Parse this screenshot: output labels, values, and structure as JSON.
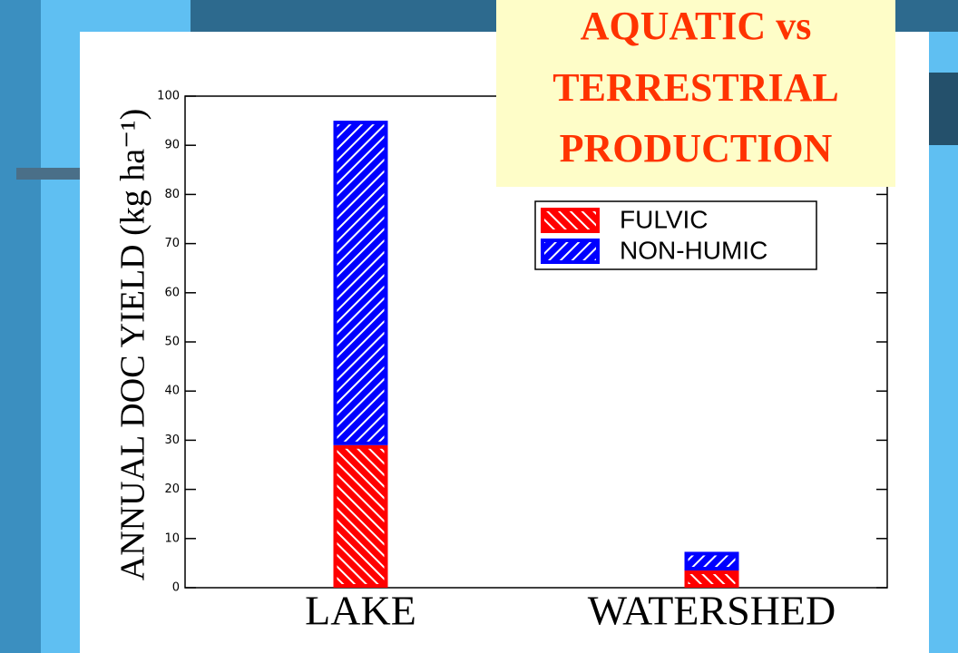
{
  "chart_data": {
    "type": "stacked_bar",
    "title": [
      "AQUATIC vs",
      "TERRESTRIAL",
      "PRODUCTION"
    ],
    "y_label": "ANNUAL DOC YIELD (kg ha⁻¹)",
    "categories": [
      "LAKE",
      "WATERSHED"
    ],
    "series": [
      {
        "name": "FULVIC",
        "color": "#ff0000",
        "values": [
          29,
          3.5
        ]
      },
      {
        "name": "NON-HUMIC",
        "color": "#0000ff",
        "values": [
          66,
          3.8
        ]
      }
    ],
    "ylim": [
      0,
      100
    ],
    "yticks": [
      0,
      10,
      20,
      30,
      40,
      50,
      60,
      70,
      80,
      90,
      100
    ],
    "legend": "upper right"
  }
}
